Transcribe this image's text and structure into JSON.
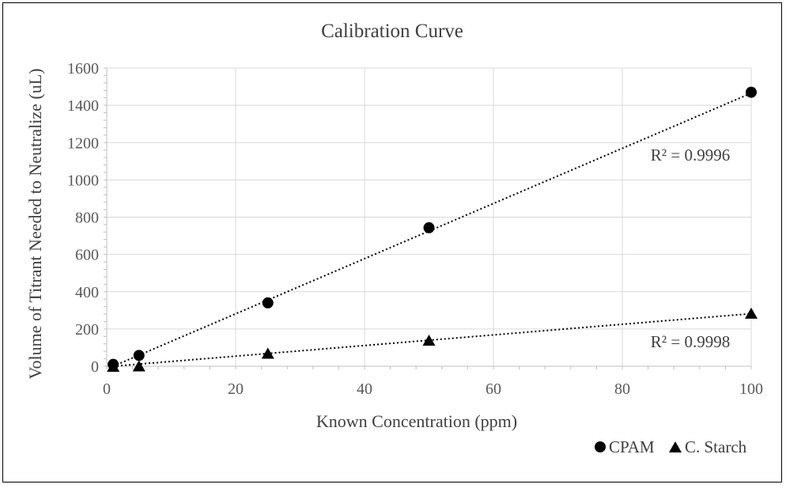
{
  "chart_data": {
    "type": "scatter",
    "title": "Calibration Curve",
    "xlabel": "Known Concentration (ppm)",
    "ylabel": "Volume of Titrant Needed to Neutralize (uL)",
    "xlim": [
      0,
      100
    ],
    "ylim": [
      0,
      1600
    ],
    "xticks": [
      0,
      20,
      40,
      60,
      80,
      100
    ],
    "yticks": [
      0,
      200,
      400,
      600,
      800,
      1000,
      1200,
      1400,
      1600
    ],
    "grid": true,
    "legend_position": "bottom-right",
    "series": [
      {
        "name": "CPAM",
        "marker": "circle",
        "color": "#000000",
        "points": [
          {
            "x": 1,
            "y": 10
          },
          {
            "x": 5,
            "y": 58
          },
          {
            "x": 25,
            "y": 340
          },
          {
            "x": 50,
            "y": 743
          },
          {
            "x": 100,
            "y": 1470
          }
        ],
        "trendline": {
          "x0": 1,
          "y0": 0,
          "x1": 100,
          "y1": 1465
        },
        "r2_label": "R² = 0.9996"
      },
      {
        "name": "C. Starch",
        "marker": "triangle",
        "color": "#000000",
        "points": [
          {
            "x": 1,
            "y": 0
          },
          {
            "x": 5,
            "y": 2
          },
          {
            "x": 25,
            "y": 70
          },
          {
            "x": 50,
            "y": 140
          },
          {
            "x": 100,
            "y": 285
          }
        ],
        "trendline": {
          "x0": 1,
          "y0": 0,
          "x1": 100,
          "y1": 282
        },
        "r2_label": "R² = 0.9998"
      }
    ]
  }
}
